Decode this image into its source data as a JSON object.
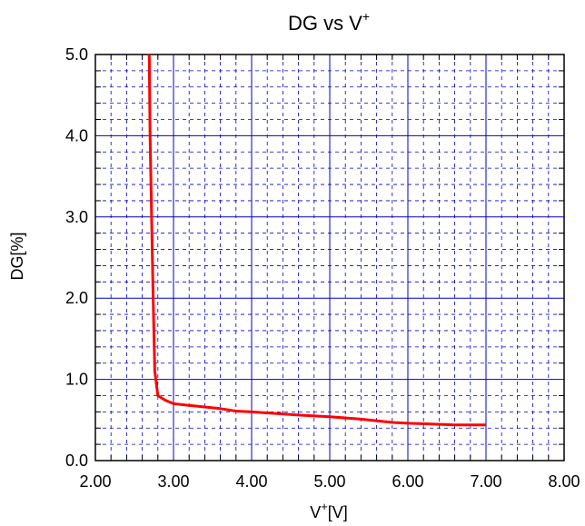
{
  "chart_data": {
    "type": "line",
    "title": "DG vs V",
    "title_superscript": "+",
    "xlabel": "V",
    "xlabel_superscript": "+",
    "xlabel_unit": "[V]",
    "ylabel": "DG[%]",
    "xlim": [
      2.0,
      8.0
    ],
    "ylim": [
      0.0,
      5.0
    ],
    "x_ticks": [
      "2.00",
      "3.00",
      "4.00",
      "5.00",
      "6.00",
      "7.00",
      "8.00"
    ],
    "y_ticks": [
      "0.0",
      "1.0",
      "2.0",
      "3.0",
      "4.0",
      "5.0"
    ],
    "grid": true,
    "legend": "none",
    "series": [
      {
        "color": "#ff0000",
        "x": [
          2.69,
          2.7,
          2.72,
          2.74,
          2.76,
          2.8,
          2.9,
          3.0,
          3.2,
          3.4,
          3.6,
          3.8,
          4.0,
          4.3,
          4.6,
          5.0,
          5.4,
          5.8,
          6.0,
          6.3,
          6.6,
          7.0
        ],
        "y": [
          5.0,
          4.0,
          3.0,
          2.0,
          1.1,
          0.8,
          0.74,
          0.7,
          0.68,
          0.66,
          0.64,
          0.61,
          0.6,
          0.58,
          0.56,
          0.54,
          0.51,
          0.47,
          0.46,
          0.45,
          0.44,
          0.44
        ]
      }
    ]
  },
  "colors": {
    "grid": "#0000cc",
    "series": "#ff0000"
  }
}
